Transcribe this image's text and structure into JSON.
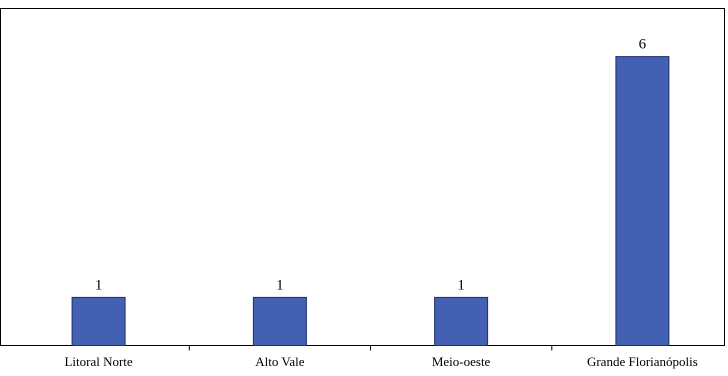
{
  "chart_data": {
    "type": "bar",
    "categories": [
      "Litoral Norte",
      "Alto Vale",
      "Meio-oeste",
      "Grande Florianópolis"
    ],
    "values": [
      1,
      1,
      1,
      6
    ],
    "data_labels": [
      "1",
      "1",
      "1",
      "6"
    ],
    "title": "",
    "xlabel": "",
    "ylabel": "",
    "ylim": [
      0,
      7
    ],
    "grid": false,
    "legend": "none",
    "bar_color": "#4460b2",
    "bar_edge_color": "#1f2f6b"
  }
}
